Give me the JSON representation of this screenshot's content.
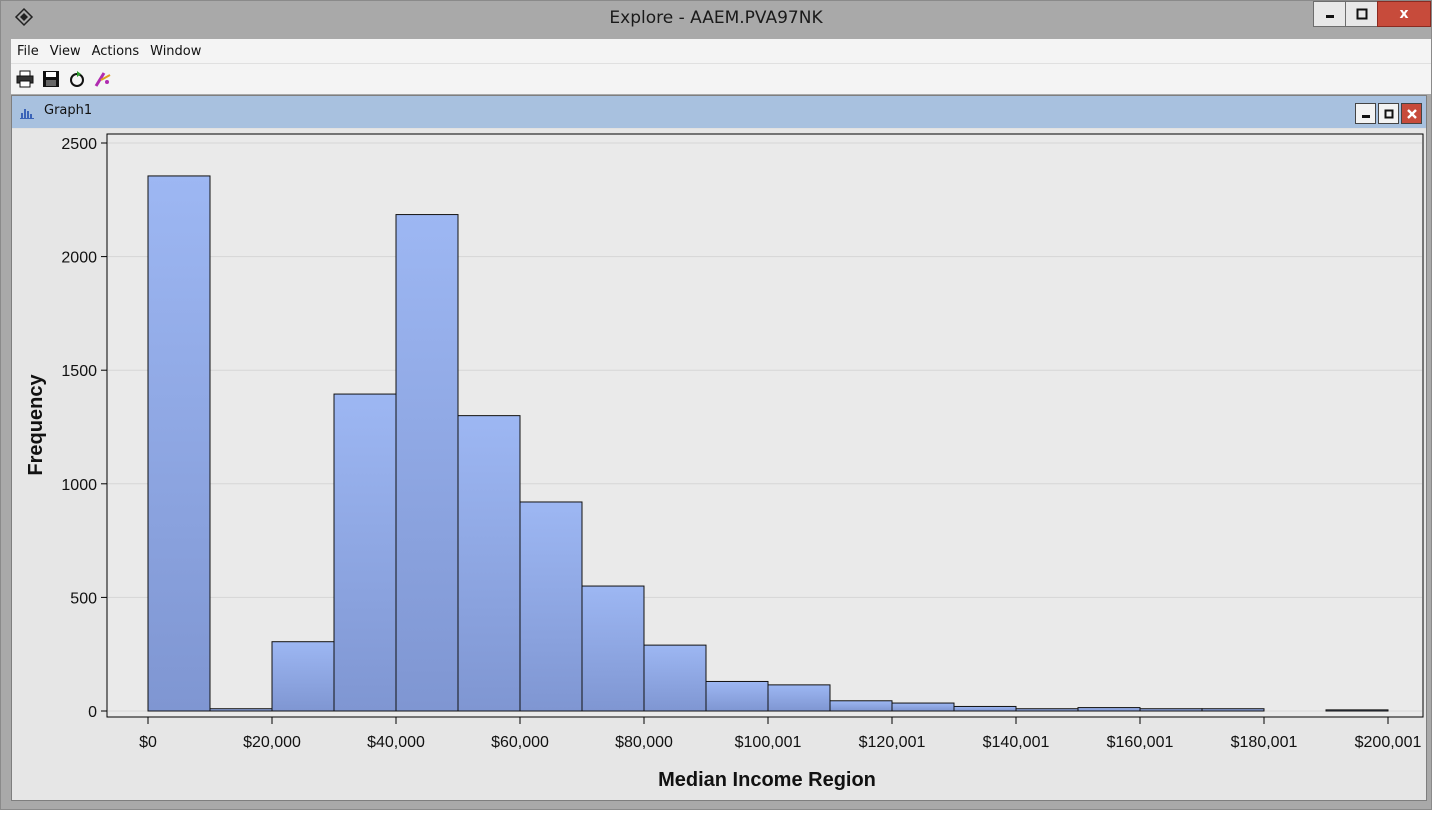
{
  "window": {
    "title": "Explore - AAEM.PVA97NK",
    "app_icon": "sas-diamond-icon",
    "controls": {
      "minimize": "–",
      "maximize": "□",
      "close": "x"
    }
  },
  "menubar": {
    "items": [
      "File",
      "View",
      "Actions",
      "Window"
    ]
  },
  "toolbar": {
    "icons": [
      "print-icon",
      "save-icon",
      "refresh-icon",
      "wizard-icon"
    ]
  },
  "subwindow": {
    "title": "Graph1",
    "icon": "bar-chart-icon"
  },
  "colors": {
    "bar_fill_top": "#9db7f3",
    "bar_fill_bottom": "#7f96d2",
    "title_bar": "#a9a9a9",
    "subtitle_bar": "#a8c1df",
    "close_red": "#c74b3b"
  },
  "chart_data": {
    "type": "bar",
    "xlabel": "Median Income Region",
    "ylabel": "Frequency",
    "ylim": [
      0,
      2500
    ],
    "yticks": [
      0,
      500,
      1000,
      1500,
      2000,
      2500
    ],
    "xtick_labels": [
      "$0",
      "$20,000",
      "$40,000",
      "$60,000",
      "$80,000",
      "$100,001",
      "$120,001",
      "$140,001",
      "$160,001",
      "$180,001",
      "$200,001"
    ],
    "bin_width": 10000,
    "bins_start": 0,
    "values": [
      2355,
      10,
      305,
      1395,
      2185,
      1300,
      920,
      550,
      290,
      130,
      115,
      45,
      35,
      20,
      10,
      15,
      10,
      10,
      0,
      5
    ],
    "grid": true,
    "legend": "none"
  }
}
